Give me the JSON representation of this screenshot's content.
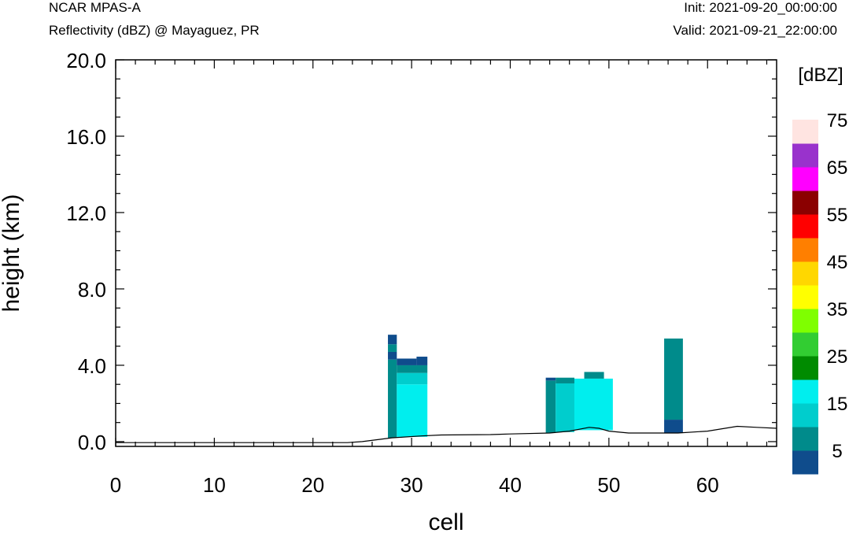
{
  "header": {
    "model": "NCAR MPAS-A",
    "subtitle": "Reflectivity (dBZ) @ Mayaguez, PR",
    "init": "Init: 2021-09-20_00:00:00",
    "valid": "Valid: 2021-09-21_22:00:00"
  },
  "chart_data": {
    "type": "heatmap",
    "title": "Reflectivity (dBZ) @ Mayaguez, PR",
    "xlabel": "cell",
    "ylabel": "height (km)",
    "xlim": [
      0,
      67
    ],
    "ylim": [
      -0.25,
      20.0
    ],
    "x_ticks": [
      0,
      10,
      20,
      30,
      40,
      50,
      60
    ],
    "x_tick_labels": [
      "0",
      "10",
      "20",
      "30",
      "40",
      "50",
      "60"
    ],
    "y_ticks": [
      0,
      4,
      8,
      12,
      16,
      20
    ],
    "y_tick_labels": [
      "0.0",
      "4.0",
      "8.0",
      "12.0",
      "16.0",
      "20.0"
    ],
    "colorbar": {
      "label": "[dBZ]",
      "bins": [
        0,
        5,
        10,
        15,
        20,
        25,
        30,
        35,
        40,
        45,
        50,
        55,
        60,
        65,
        70,
        75
      ],
      "tick_labels": [
        "5",
        "15",
        "25",
        "35",
        "45",
        "55",
        "65",
        "75"
      ],
      "colors": [
        "#0f4c8c",
        "#008b8b",
        "#00cdcd",
        "#00eeee",
        "#008b00",
        "#32cd32",
        "#7fff00",
        "#ffff00",
        "#ffd700",
        "#ff7f00",
        "#ff0000",
        "#8b0000",
        "#ff00ff",
        "#9932cc",
        "#ffe4e1"
      ]
    },
    "terrain": [
      [
        0,
        -0.05
      ],
      [
        23.5,
        -0.05
      ],
      [
        25,
        0.0
      ],
      [
        28,
        0.2
      ],
      [
        31,
        0.3
      ],
      [
        33,
        0.35
      ],
      [
        38,
        0.37
      ],
      [
        40,
        0.4
      ],
      [
        44,
        0.45
      ],
      [
        46,
        0.55
      ],
      [
        48,
        0.75
      ],
      [
        49,
        0.7
      ],
      [
        50,
        0.55
      ],
      [
        52,
        0.45
      ],
      [
        55,
        0.45
      ],
      [
        57,
        0.45
      ],
      [
        60,
        0.55
      ],
      [
        63,
        0.8
      ],
      [
        65,
        0.75
      ],
      [
        67,
        0.7
      ]
    ],
    "cells": [
      {
        "x": [
          27.6,
          28.5
        ],
        "y": [
          0.2,
          4.3
        ],
        "dbz": 7
      },
      {
        "x": [
          27.6,
          28.5
        ],
        "y": [
          4.3,
          4.7
        ],
        "dbz": 2
      },
      {
        "x": [
          27.6,
          28.5
        ],
        "y": [
          4.7,
          5.1
        ],
        "dbz": 7
      },
      {
        "x": [
          27.6,
          28.5
        ],
        "y": [
          5.1,
          5.6
        ],
        "dbz": 2
      },
      {
        "x": [
          28.5,
          31.6
        ],
        "y": [
          0.25,
          3.0
        ],
        "dbz": 17
      },
      {
        "x": [
          28.5,
          31.6
        ],
        "y": [
          3.0,
          3.6
        ],
        "dbz": 12
      },
      {
        "x": [
          28.5,
          31.6
        ],
        "y": [
          3.6,
          4.0
        ],
        "dbz": 7
      },
      {
        "x": [
          28.5,
          30.5
        ],
        "y": [
          4.0,
          4.35
        ],
        "dbz": 2
      },
      {
        "x": [
          30.5,
          31.6
        ],
        "y": [
          4.0,
          4.45
        ],
        "dbz": 2
      },
      {
        "x": [
          43.6,
          44.6
        ],
        "y": [
          0.45,
          3.2
        ],
        "dbz": 7
      },
      {
        "x": [
          43.6,
          44.6
        ],
        "y": [
          3.2,
          3.35
        ],
        "dbz": 2
      },
      {
        "x": [
          44.6,
          46.5
        ],
        "y": [
          0.5,
          3.05
        ],
        "dbz": 12
      },
      {
        "x": [
          44.6,
          46.5
        ],
        "y": [
          3.05,
          3.35
        ],
        "dbz": 7
      },
      {
        "x": [
          46.5,
          50.4
        ],
        "y": [
          0.6,
          3.3
        ],
        "dbz": 17
      },
      {
        "x": [
          47.5,
          49.5
        ],
        "y": [
          3.3,
          3.65
        ],
        "dbz": 7
      },
      {
        "x": [
          55.6,
          57.5
        ],
        "y": [
          0.45,
          1.15
        ],
        "dbz": 2
      },
      {
        "x": [
          55.6,
          57.5
        ],
        "y": [
          1.15,
          5.4
        ],
        "dbz": 7
      }
    ]
  }
}
